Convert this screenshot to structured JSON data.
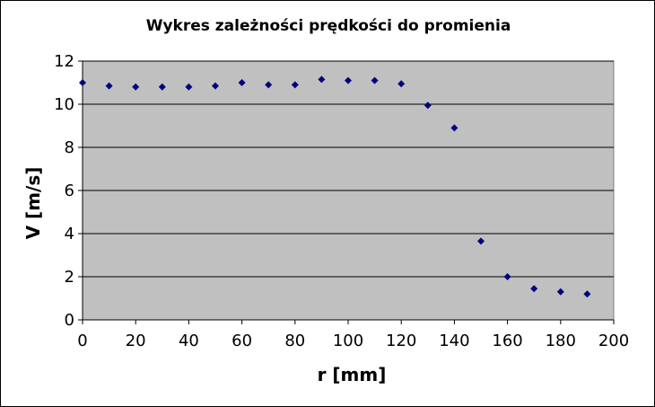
{
  "chart_data": {
    "type": "scatter",
    "title": "Wykres zależności prędkości do promienia",
    "xlabel": "r [mm]",
    "ylabel": "V [m/s]",
    "xlim": [
      0,
      200
    ],
    "ylim": [
      0,
      12
    ],
    "xticks": [
      "0",
      "20",
      "40",
      "60",
      "80",
      "100",
      "120",
      "140",
      "160",
      "180",
      "200"
    ],
    "yticks": [
      "0",
      "2",
      "4",
      "6",
      "8",
      "10",
      "12"
    ],
    "grid": "horizontal",
    "legend": "none",
    "plot_background": "#c0c0c0",
    "marker_color": "#000080",
    "marker": "diamond",
    "series": [
      {
        "x": [
          0,
          10,
          20,
          30,
          40,
          50,
          60,
          70,
          80,
          90,
          100,
          110,
          120,
          130,
          140,
          150,
          160,
          170,
          180,
          190
        ],
        "y": [
          11.0,
          10.85,
          10.8,
          10.8,
          10.8,
          10.85,
          11.0,
          10.9,
          10.9,
          11.15,
          11.1,
          11.1,
          10.95,
          9.95,
          8.9,
          3.65,
          2.0,
          1.45,
          1.3,
          1.2
        ]
      }
    ]
  }
}
